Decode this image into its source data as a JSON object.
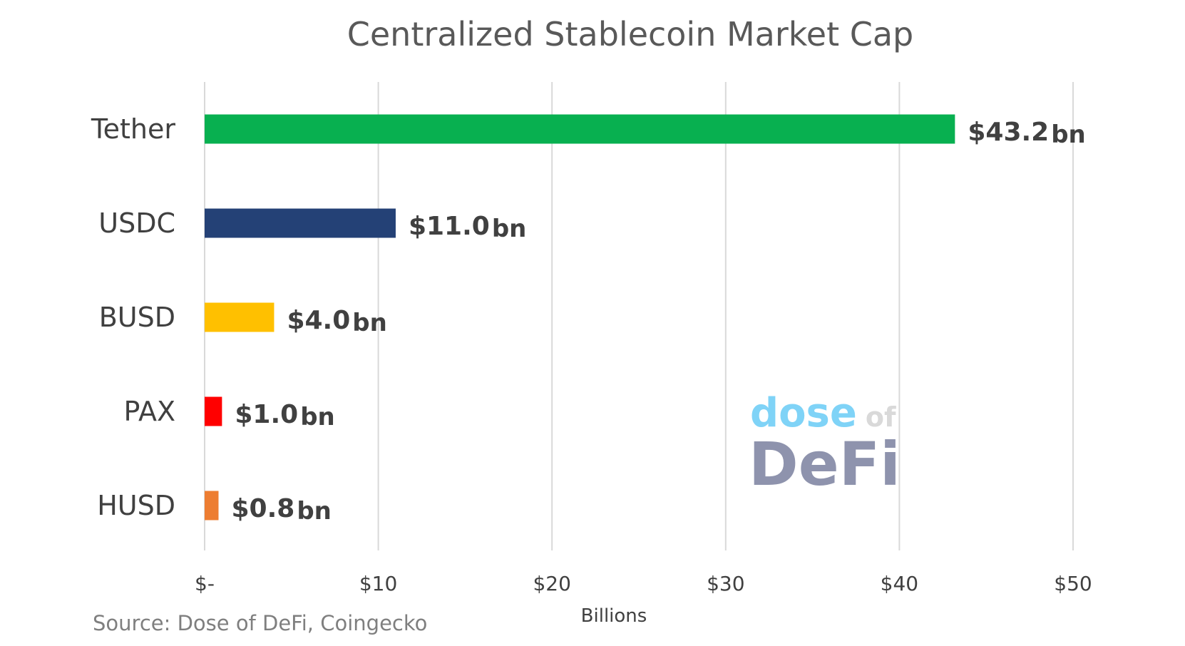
{
  "chart_data": {
    "type": "bar",
    "orientation": "horizontal",
    "title": "Centralized Stablecoin Market Cap",
    "xlabel": "Billions",
    "ylabel": "",
    "xlim": [
      0,
      50
    ],
    "grid": true,
    "categories": [
      "Tether",
      "USDC",
      "BUSD",
      "PAX",
      "HUSD"
    ],
    "values": [
      43.2,
      11.0,
      4.0,
      1.0,
      0.8
    ],
    "colors": [
      "#08b050",
      "#244176",
      "#ffc000",
      "#ff0000",
      "#ed7d31"
    ],
    "data_labels": [
      {
        "value": "$43.2",
        "unit": "bn"
      },
      {
        "value": "$11.0",
        "unit": "bn"
      },
      {
        "value": "$4.0",
        "unit": "bn"
      },
      {
        "value": "$1.0",
        "unit": "bn"
      },
      {
        "value": "$0.8",
        "unit": "bn"
      }
    ],
    "x_ticks": [
      0,
      10,
      20,
      30,
      40,
      50
    ],
    "x_tick_labels": [
      "$-",
      "$10",
      "$20",
      "$30",
      "$40",
      "$50"
    ],
    "annotations": [
      "Source: Dose of DeFi, Coingecko"
    ]
  },
  "logo": {
    "line1": "dose",
    "line1_suffix": "of",
    "line2": "DeFi",
    "colors": {
      "dose": "#7fd3f7",
      "of": "#d9d9d9",
      "defi": "#8e93ad"
    }
  }
}
